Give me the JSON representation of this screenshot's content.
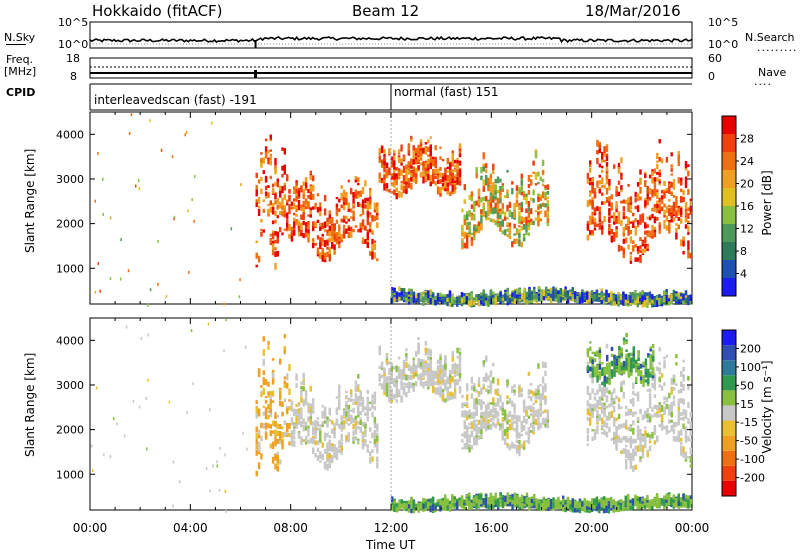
{
  "header": {
    "station": "Hokkaido (fitACF)",
    "beam": "Beam 12",
    "date": "18/Mar/2016"
  },
  "strip_labels": {
    "nsky": "N.Sky",
    "nsearch": "N.Search",
    "freq": "Freq.",
    "freq_unit": "[MHz]",
    "nave": "Nave",
    "cpid": "CPID",
    "nsky_ticks": [
      "10^5",
      "10^0"
    ],
    "nsearch_ticks": [
      "10^5",
      "10^0"
    ],
    "freq_ticks": [
      "18",
      "8"
    ],
    "nave_ticks": [
      "60",
      "0"
    ]
  },
  "cpid_modes": [
    {
      "label": "interleavedscan (fast) -191",
      "start_hour": 0,
      "end_hour": 12
    },
    {
      "label": "normal (fast) 151",
      "start_hour": 12,
      "end_hour": 24
    }
  ],
  "colors": {
    "power": [
      "#1c1cf0",
      "#1f4fb0",
      "#2f7a5a",
      "#4f9a5a",
      "#8ac040",
      "#e0c020",
      "#f0a020",
      "#f07010",
      "#f04010",
      "#e80000"
    ],
    "velocity": [
      "#e80000",
      "#f04010",
      "#f07010",
      "#f0a020",
      "#e8c030",
      "#c8c8c8",
      "#8ac040",
      "#2f9a4f",
      "#2f7a9a",
      "#2f4fb0",
      "#1c1cf0"
    ],
    "grey": "#c8c8c8",
    "dotted": "#aaaaaa"
  },
  "chart_data": [
    {
      "type": "heatmap",
      "panel": "power",
      "xlabel": "",
      "ylabel": "Slant Range [km]",
      "x_range_hours": [
        0,
        24
      ],
      "ylim": [
        200,
        4500
      ],
      "yticks": [
        "1000",
        "2000",
        "3000",
        "4000"
      ],
      "colorbar": {
        "label": "Power [dB]",
        "tick_labels": [
          "4",
          "8",
          "12",
          "16",
          "20",
          "24",
          "28"
        ],
        "range": [
          0,
          32
        ]
      },
      "echo_regions": [
        {
          "start_hour": 6.6,
          "end_hour": 8.0,
          "min_km": 900,
          "max_km": 4300,
          "level": "high"
        },
        {
          "start_hour": 8.0,
          "end_hour": 11.5,
          "min_km": 1100,
          "max_km": 3400,
          "level": "high"
        },
        {
          "start_hour": 11.5,
          "end_hour": 14.8,
          "min_km": 2600,
          "max_km": 4100,
          "level": "high"
        },
        {
          "start_hour": 14.8,
          "end_hour": 18.3,
          "min_km": 1400,
          "max_km": 3700,
          "level": "mid"
        },
        {
          "start_hour": 19.8,
          "end_hour": 24.0,
          "min_km": 1000,
          "max_km": 4000,
          "level": "high"
        },
        {
          "start_hour": 12.0,
          "end_hour": 24.0,
          "min_km": 250,
          "max_km": 600,
          "level": "low"
        }
      ]
    },
    {
      "type": "heatmap",
      "panel": "velocity",
      "xlabel": "Time UT",
      "ylabel": "Slant Range [km]",
      "x_range_hours": [
        0,
        24
      ],
      "xticks": [
        "00:00",
        "04:00",
        "08:00",
        "12:00",
        "16:00",
        "20:00",
        "00:00"
      ],
      "ylim": [
        200,
        4500
      ],
      "yticks": [
        "1000",
        "2000",
        "3000",
        "4000"
      ],
      "colorbar": {
        "label": "Velocity [m s⁻¹]",
        "tick_labels": [
          "-200",
          "-100",
          "-50",
          "-15",
          "15",
          "50",
          "100",
          "200"
        ],
        "range": [
          -250,
          250
        ]
      },
      "echo_regions": [
        {
          "start_hour": 6.6,
          "end_hour": 8.0,
          "min_km": 900,
          "max_km": 4300,
          "level": "neg"
        },
        {
          "start_hour": 8.0,
          "end_hour": 11.5,
          "min_km": 1100,
          "max_km": 3400,
          "level": "zero"
        },
        {
          "start_hour": 11.5,
          "end_hour": 14.8,
          "min_km": 2600,
          "max_km": 4100,
          "level": "zero"
        },
        {
          "start_hour": 14.8,
          "end_hour": 18.3,
          "min_km": 1400,
          "max_km": 3700,
          "level": "zero"
        },
        {
          "start_hour": 19.8,
          "end_hour": 24.0,
          "min_km": 1000,
          "max_km": 4000,
          "level": "zero"
        },
        {
          "start_hour": 19.8,
          "end_hour": 22.5,
          "min_km": 3000,
          "max_km": 4200,
          "level": "pos"
        },
        {
          "start_hour": 12.0,
          "end_hour": 24.0,
          "min_km": 250,
          "max_km": 600,
          "level": "pos"
        }
      ]
    }
  ]
}
